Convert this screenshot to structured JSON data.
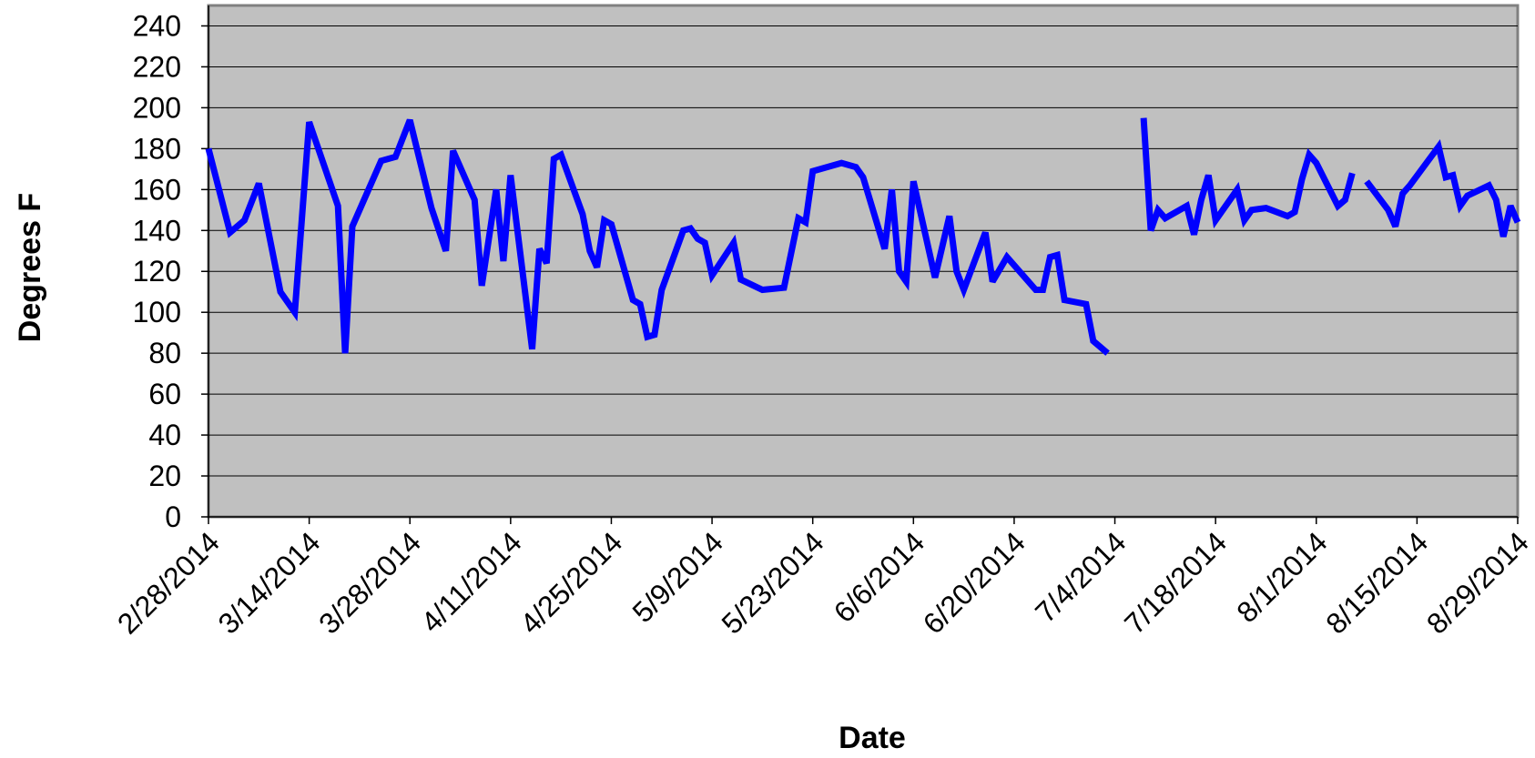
{
  "chart_data": {
    "type": "line",
    "x_label": "Date",
    "y_label": "Degrees F",
    "x": [
      "2/28/2014",
      "3/3/2014",
      "3/5/2014",
      "3/7/2014",
      "3/10/2014",
      "3/12/2014",
      "3/14/2014",
      "3/18/2014",
      "3/19/2014",
      "3/20/2014",
      "3/24/2014",
      "3/26/2014",
      "3/28/2014",
      "3/31/2014",
      "4/2/2014",
      "4/3/2014",
      "4/6/2014",
      "4/7/2014",
      "4/9/2014",
      "4/10/2014",
      "4/11/2014",
      "4/14/2014",
      "4/15/2014",
      "4/16/2014",
      "4/17/2014",
      "4/18/2014",
      "4/21/2014",
      "4/22/2014",
      "4/23/2014",
      "4/24/2014",
      "4/25/2014",
      "4/28/2014",
      "4/29/2014",
      "4/30/2014",
      "5/1/2014",
      "5/2/2014",
      "5/5/2014",
      "5/6/2014",
      "5/7/2014",
      "5/8/2014",
      "5/9/2014",
      "5/12/2014",
      "5/13/2014",
      "5/16/2014",
      "5/19/2014",
      "5/21/2014",
      "5/22/2014",
      "5/23/2014",
      "5/27/2014",
      "5/29/2014",
      "5/30/2014",
      "6/2/2014",
      "6/3/2014",
      "6/4/2014",
      "6/5/2014",
      "6/6/2014",
      "6/9/2014",
      "6/11/2014",
      "6/12/2014",
      "6/13/2014",
      "6/16/2014",
      "6/17/2014",
      "6/19/2014",
      "6/23/2014",
      "6/24/2014",
      "6/25/2014",
      "6/26/2014",
      "6/27/2014",
      "6/30/2014",
      "7/1/2014",
      "7/3/2014",
      "7/5/2014",
      "7/8/2014",
      "7/9/2014",
      "7/10/2014",
      "7/11/2014",
      "7/14/2014",
      "7/15/2014",
      "7/16/2014",
      "7/17/2014",
      "7/18/2014",
      "7/21/2014",
      "7/22/2014",
      "7/23/2014",
      "7/25/2014",
      "7/28/2014",
      "7/29/2014",
      "7/30/2014",
      "7/31/2014",
      "8/1/2014",
      "8/4/2014",
      "8/5/2014",
      "8/6/2014",
      "8/7/2014",
      "8/8/2014",
      "8/11/2014",
      "8/12/2014",
      "8/13/2014",
      "8/14/2014",
      "8/18/2014",
      "8/19/2014",
      "8/20/2014",
      "8/21/2014",
      "8/22/2014",
      "8/25/2014",
      "8/26/2014",
      "8/27/2014",
      "8/28/2014",
      "8/29/2014"
    ],
    "values": [
      180,
      139,
      145,
      163,
      110,
      100,
      193,
      152,
      80,
      142,
      174,
      176,
      194,
      151,
      130,
      179,
      155,
      113,
      160,
      125,
      167,
      82,
      131,
      124,
      175,
      177,
      148,
      130,
      122,
      145,
      143,
      106,
      104,
      88,
      89,
      111,
      140,
      141,
      136,
      134,
      118,
      134,
      116,
      111,
      112,
      146,
      144,
      169,
      173,
      171,
      166,
      131,
      160,
      120,
      115,
      164,
      117,
      147,
      120,
      111,
      139,
      115,
      127,
      111,
      111,
      127,
      128,
      106,
      104,
      86,
      80,
      null,
      195,
      140,
      150,
      146,
      152,
      138,
      155,
      167,
      145,
      160,
      145,
      150,
      151,
      147,
      149,
      165,
      177,
      173,
      152,
      155,
      168,
      null,
      164,
      150,
      142,
      158,
      162,
      181,
      166,
      167,
      152,
      157,
      162,
      155,
      137,
      152,
      144
    ],
    "color": "#0000ff",
    "xlim": [
      "2/28/2014",
      "8/29/2014"
    ],
    "xticks": [
      "2/28/2014",
      "3/14/2014",
      "3/28/2014",
      "4/11/2014",
      "4/25/2014",
      "5/9/2014",
      "5/23/2014",
      "6/6/2014",
      "6/20/2014",
      "7/4/2014",
      "7/18/2014",
      "8/1/2014",
      "8/15/2014",
      "8/29/2014"
    ],
    "ylim": [
      0,
      250
    ],
    "yticks": [
      0,
      20,
      40,
      60,
      80,
      100,
      120,
      140,
      160,
      180,
      200,
      220,
      240
    ],
    "grid": true
  }
}
